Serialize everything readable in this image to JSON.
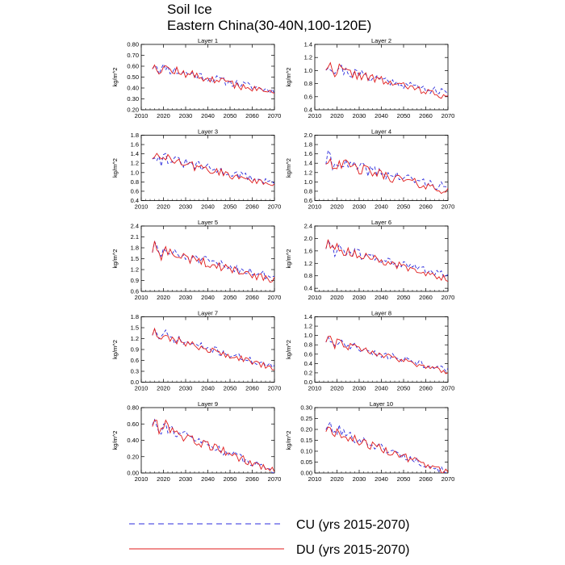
{
  "figure": {
    "title": "Soil Ice",
    "subtitle": "Eastern China(30-40N,100-120E)"
  },
  "legend": [
    {
      "label": "CU (yrs 2015-2070)",
      "color": "#2b2bdc",
      "style": "dashed"
    },
    {
      "label": "DU (yrs 2015-2070)",
      "color": "#e01b1b",
      "style": "solid"
    }
  ],
  "chart_data": [
    {
      "type": "line",
      "title": "Layer 1",
      "xlabel": "",
      "ylabel": "kg/m^2",
      "xlim": [
        2010,
        2070
      ],
      "ylim": [
        0.2,
        0.8
      ],
      "xticks": [
        2010,
        2020,
        2030,
        2040,
        2050,
        2060,
        2070
      ],
      "yticks": [
        "0.20",
        "0.30",
        "0.40",
        "0.50",
        "0.60",
        "0.70",
        "0.80"
      ],
      "series": [
        {
          "name": "CU",
          "start": 0.6,
          "end": 0.37,
          "wig": 0.05,
          "seed": 11
        },
        {
          "name": "DU",
          "start": 0.6,
          "end": 0.35,
          "wig": 0.05,
          "seed": 12
        }
      ]
    },
    {
      "type": "line",
      "title": "Layer 2",
      "xlabel": "",
      "ylabel": "kg/m^2",
      "xlim": [
        2010,
        2070
      ],
      "ylim": [
        0.4,
        1.4
      ],
      "xticks": [
        2010,
        2020,
        2030,
        2040,
        2050,
        2060,
        2070
      ],
      "yticks": [
        "0.4",
        "0.6",
        "0.8",
        "1.0",
        "1.2",
        "1.4"
      ],
      "series": [
        {
          "name": "CU",
          "start": 1.05,
          "end": 0.65,
          "wig": 0.09,
          "seed": 21
        },
        {
          "name": "DU",
          "start": 1.05,
          "end": 0.6,
          "wig": 0.08,
          "seed": 22
        }
      ]
    },
    {
      "type": "line",
      "title": "Layer 3",
      "xlabel": "",
      "ylabel": "kg/m^2",
      "xlim": [
        2010,
        2070
      ],
      "ylim": [
        0.4,
        1.8
      ],
      "xticks": [
        2010,
        2020,
        2030,
        2040,
        2050,
        2060,
        2070
      ],
      "yticks": [
        "0.4",
        "0.6",
        "0.8",
        "1.0",
        "1.2",
        "1.4",
        "1.6",
        "1.8"
      ],
      "series": [
        {
          "name": "CU",
          "start": 1.35,
          "end": 0.78,
          "wig": 0.12,
          "seed": 31
        },
        {
          "name": "DU",
          "start": 1.35,
          "end": 0.72,
          "wig": 0.11,
          "seed": 32
        }
      ]
    },
    {
      "type": "line",
      "title": "Layer 4",
      "xlabel": "",
      "ylabel": "kg/m^2",
      "xlim": [
        2010,
        2070
      ],
      "ylim": [
        0.6,
        2.0
      ],
      "xticks": [
        2010,
        2020,
        2030,
        2040,
        2050,
        2060,
        2070
      ],
      "yticks": [
        "0.6",
        "0.8",
        "1.0",
        "1.2",
        "1.4",
        "1.6",
        "1.8",
        "2.0"
      ],
      "series": [
        {
          "name": "CU",
          "start": 1.45,
          "end": 0.88,
          "wig": 0.15,
          "seed": 41
        },
        {
          "name": "DU",
          "start": 1.45,
          "end": 0.8,
          "wig": 0.14,
          "seed": 42
        }
      ]
    },
    {
      "type": "line",
      "title": "Layer 5",
      "xlabel": "",
      "ylabel": "kg/m^2",
      "xlim": [
        2010,
        2070
      ],
      "ylim": [
        0.6,
        2.4
      ],
      "xticks": [
        2010,
        2020,
        2030,
        2040,
        2050,
        2060,
        2070
      ],
      "yticks": [
        "0.6",
        "0.9",
        "1.2",
        "1.5",
        "1.8",
        "2.1",
        "2.4"
      ],
      "series": [
        {
          "name": "CU",
          "start": 1.75,
          "end": 1.0,
          "wig": 0.17,
          "seed": 51
        },
        {
          "name": "DU",
          "start": 1.75,
          "end": 0.9,
          "wig": 0.16,
          "seed": 52
        }
      ]
    },
    {
      "type": "line",
      "title": "Layer 6",
      "xlabel": "",
      "ylabel": "kg/m^2",
      "xlim": [
        2010,
        2070
      ],
      "ylim": [
        0.3,
        2.4
      ],
      "xticks": [
        2010,
        2020,
        2030,
        2040,
        2050,
        2060,
        2070
      ],
      "yticks": [
        "0.4",
        "0.8",
        "1.2",
        "1.6",
        "2.0",
        "2.4"
      ],
      "series": [
        {
          "name": "CU",
          "start": 1.75,
          "end": 0.8,
          "wig": 0.18,
          "seed": 61
        },
        {
          "name": "DU",
          "start": 1.75,
          "end": 0.7,
          "wig": 0.17,
          "seed": 62
        }
      ]
    },
    {
      "type": "line",
      "title": "Layer 7",
      "xlabel": "",
      "ylabel": "kg/m^2",
      "xlim": [
        2010,
        2070
      ],
      "ylim": [
        0.0,
        1.8
      ],
      "xticks": [
        2010,
        2020,
        2030,
        2040,
        2050,
        2060,
        2070
      ],
      "yticks": [
        "0.0",
        "0.3",
        "0.6",
        "0.9",
        "1.2",
        "1.5",
        "1.8"
      ],
      "series": [
        {
          "name": "CU",
          "start": 1.35,
          "end": 0.42,
          "wig": 0.13,
          "seed": 71
        },
        {
          "name": "DU",
          "start": 1.35,
          "end": 0.38,
          "wig": 0.12,
          "seed": 72
        }
      ]
    },
    {
      "type": "line",
      "title": "Layer 8",
      "xlabel": "",
      "ylabel": "kg/m^2",
      "xlim": [
        2010,
        2070
      ],
      "ylim": [
        0.0,
        1.4
      ],
      "xticks": [
        2010,
        2020,
        2030,
        2040,
        2050,
        2060,
        2070
      ],
      "yticks": [
        "0.0",
        "0.2",
        "0.4",
        "0.6",
        "0.8",
        "1.0",
        "1.2",
        "1.4"
      ],
      "series": [
        {
          "name": "CU",
          "start": 0.9,
          "end": 0.25,
          "wig": 0.1,
          "seed": 81
        },
        {
          "name": "DU",
          "start": 0.9,
          "end": 0.22,
          "wig": 0.09,
          "seed": 82
        }
      ]
    },
    {
      "type": "line",
      "title": "Layer 9",
      "xlabel": "",
      "ylabel": "kg/m^2",
      "xlim": [
        2010,
        2070
      ],
      "ylim": [
        0.0,
        0.8
      ],
      "xticks": [
        2010,
        2020,
        2030,
        2040,
        2050,
        2060,
        2070
      ],
      "yticks": [
        "0.00",
        "0.20",
        "0.40",
        "0.60",
        "0.80"
      ],
      "series": [
        {
          "name": "CU",
          "start": 0.62,
          "end": 0.02,
          "wig": 0.07,
          "seed": 91
        },
        {
          "name": "DU",
          "start": 0.6,
          "end": 0.02,
          "wig": 0.07,
          "seed": 92
        }
      ]
    },
    {
      "type": "line",
      "title": "Layer 10",
      "xlabel": "",
      "ylabel": "kg/m^2",
      "xlim": [
        2010,
        2070
      ],
      "ylim": [
        0.0,
        0.3
      ],
      "xticks": [
        2010,
        2020,
        2030,
        2040,
        2050,
        2060,
        2070
      ],
      "yticks": [
        "0.00",
        "0.05",
        "0.10",
        "0.15",
        "0.20",
        "0.25",
        "0.30"
      ],
      "series": [
        {
          "name": "CU",
          "start": 0.21,
          "end": 0.003,
          "wig": 0.025,
          "seed": 101
        },
        {
          "name": "DU",
          "start": 0.2,
          "end": 0.003,
          "wig": 0.023,
          "seed": 102
        }
      ]
    }
  ]
}
